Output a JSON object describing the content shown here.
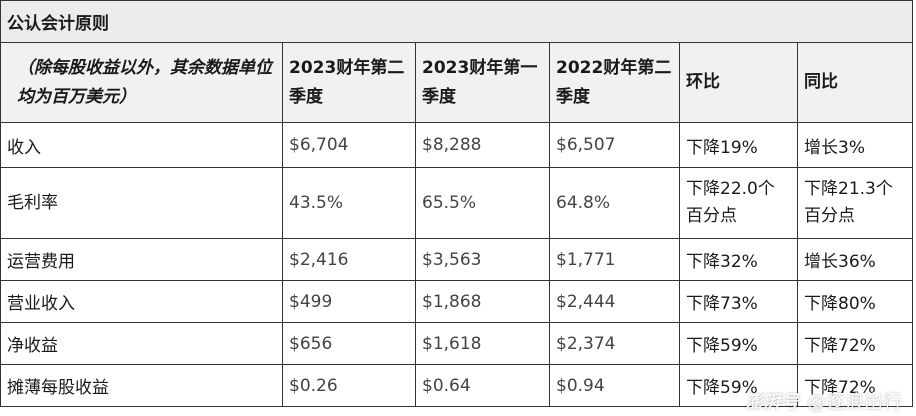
{
  "table": {
    "title": "公认会计原则",
    "header": [
      "（除每股收益以外，其余数据单位均为百万美元）",
      "2023财年第二季度",
      "2023财年第一季度",
      "2022财年第二季度",
      "环比",
      "同比"
    ],
    "rows": [
      {
        "label": "收入",
        "q2_2023": "$6,704",
        "q1_2023": "$8,288",
        "q2_2022": "$6,507",
        "qoq": "下降19%",
        "yoy": "增长3%"
      },
      {
        "label": "毛利率",
        "q2_2023": "43.5%",
        "q1_2023": "65.5%",
        "q2_2022": "64.8%",
        "qoq": "下降22.0个百分点",
        "yoy": "下降21.3个百分点"
      },
      {
        "label": "运营费用",
        "q2_2023": "$2,416",
        "q1_2023": "$3,563",
        "q2_2022": "$1,771",
        "qoq": "下降32%",
        "yoy": "增长36%"
      },
      {
        "label": "营业收入",
        "q2_2023": "$499",
        "q1_2023": "$1,868",
        "q2_2022": "$2,444",
        "qoq": "下降73%",
        "yoy": "下降80%"
      },
      {
        "label": "净收益",
        "q2_2023": "$656",
        "q1_2023": "$1,618",
        "q2_2022": "$2,374",
        "qoq": "下降59%",
        "yoy": "下降72%"
      },
      {
        "label": "摊薄每股收益",
        "q2_2023": "$0.26",
        "q1_2023": "$0.64",
        "q2_2022": "$0.94",
        "qoq": "下降59%",
        "yoy": "下降72%"
      }
    ]
  },
  "watermark": {
    "logo": "澎湃号",
    "account": "@逐浪出行"
  }
}
